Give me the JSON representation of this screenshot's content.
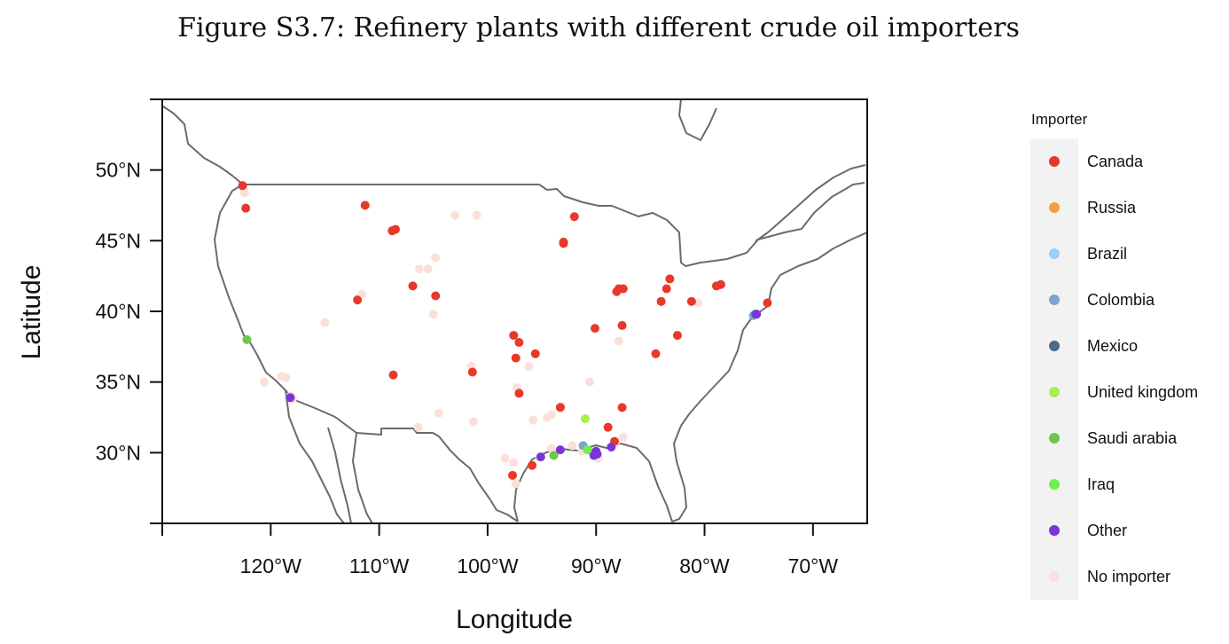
{
  "figure": {
    "title": "Figure S3.7: Refinery plants with different crude oil importers"
  },
  "legend": {
    "title": "Importer",
    "items": [
      {
        "label": "Canada",
        "color": "#e8382a"
      },
      {
        "label": "Russia",
        "color": "#f2a03c"
      },
      {
        "label": "Brazil",
        "color": "#9ecdf5"
      },
      {
        "label": "Colombia",
        "color": "#7ea4cf"
      },
      {
        "label": "Mexico",
        "color": "#4d6a86"
      },
      {
        "label": "United kingdom",
        "color": "#a6f050"
      },
      {
        "label": "Saudi arabia",
        "color": "#6cc74a"
      },
      {
        "label": "Iraq",
        "color": "#6ef04a"
      },
      {
        "label": "Other",
        "color": "#7b34d9"
      },
      {
        "label": "No importer",
        "color": "#fbe0da"
      }
    ]
  },
  "chart_data": {
    "type": "scatter",
    "title": "Figure S3.7: Refinery plants with different crude oil importers",
    "xlabel": "Longitude",
    "ylabel": "Latitude",
    "xlim": [
      -130,
      -65
    ],
    "ylim": [
      25,
      55
    ],
    "x_ticks": [
      {
        "value": -120,
        "label": "120°W"
      },
      {
        "value": -110,
        "label": "110°W"
      },
      {
        "value": -100,
        "label": "100°W"
      },
      {
        "value": -90,
        "label": "90°W"
      },
      {
        "value": -80,
        "label": "80°W"
      },
      {
        "value": -70,
        "label": "70°W"
      }
    ],
    "y_ticks": [
      {
        "value": 30,
        "label": "30°N"
      },
      {
        "value": 35,
        "label": "35°N"
      },
      {
        "value": 40,
        "label": "40°N"
      },
      {
        "value": 45,
        "label": "45°N"
      },
      {
        "value": 50,
        "label": "50°N"
      }
    ],
    "grid": false,
    "legend_position": "right",
    "series": [
      {
        "name": "No importer",
        "color": "#fbe0da",
        "points": [
          [
            -122.5,
            48.7
          ],
          [
            -122.4,
            48.4
          ],
          [
            -119,
            35.4
          ],
          [
            -118.6,
            35.3
          ],
          [
            -118.2,
            34.0
          ],
          [
            -118.0,
            33.8
          ],
          [
            -120.6,
            35.0
          ],
          [
            -115.0,
            39.2
          ],
          [
            -111.6,
            41.2
          ],
          [
            -112.0,
            40.9
          ],
          [
            -106.3,
            43.0
          ],
          [
            -105.5,
            43.0
          ],
          [
            -104.8,
            43.8
          ],
          [
            -105.0,
            39.8
          ],
          [
            -103.0,
            46.8
          ],
          [
            -101.0,
            46.8
          ],
          [
            -101.5,
            36.1
          ],
          [
            -101.3,
            32.2
          ],
          [
            -104.5,
            32.8
          ],
          [
            -106.4,
            31.8
          ],
          [
            -97.3,
            34.6
          ],
          [
            -96.2,
            36.1
          ],
          [
            -95.8,
            32.3
          ],
          [
            -94.5,
            32.5
          ],
          [
            -94.1,
            32.7
          ],
          [
            -93.2,
            33.3
          ],
          [
            -90.6,
            35.0
          ],
          [
            -87.9,
            37.9
          ],
          [
            -80.6,
            40.6
          ],
          [
            -87.5,
            31.1
          ],
          [
            -98.4,
            29.6
          ],
          [
            -97.6,
            29.3
          ],
          [
            -97.4,
            27.8
          ],
          [
            -95.2,
            29.7
          ],
          [
            -94.1,
            30.3
          ],
          [
            -93.6,
            30.1
          ],
          [
            -92.2,
            30.5
          ],
          [
            -91.3,
            30.1
          ],
          [
            -90.9,
            30.2
          ],
          [
            -89.8,
            29.6
          ],
          [
            -88.2,
            30.7
          ]
        ]
      },
      {
        "name": "Canada",
        "color": "#e8382a",
        "points": [
          [
            -122.6,
            48.9
          ],
          [
            -122.3,
            47.3
          ],
          [
            -111.3,
            47.5
          ],
          [
            -108.8,
            45.7
          ],
          [
            -108.5,
            45.8
          ],
          [
            -104.8,
            41.1
          ],
          [
            -106.9,
            41.8
          ],
          [
            -112.0,
            40.8
          ],
          [
            -108.7,
            35.5
          ],
          [
            -101.4,
            35.7
          ],
          [
            -97.4,
            36.7
          ],
          [
            -97.6,
            38.3
          ],
          [
            -97.1,
            37.8
          ],
          [
            -95.6,
            37.0
          ],
          [
            -97.1,
            34.2
          ],
          [
            -93.0,
            44.9
          ],
          [
            -93.0,
            44.8
          ],
          [
            -92.0,
            46.7
          ],
          [
            -88.1,
            41.4
          ],
          [
            -87.9,
            41.6
          ],
          [
            -87.5,
            41.6
          ],
          [
            -83.5,
            41.6
          ],
          [
            -83.2,
            42.3
          ],
          [
            -84.0,
            40.7
          ],
          [
            -81.2,
            40.7
          ],
          [
            -78.9,
            41.8
          ],
          [
            -78.5,
            41.9
          ],
          [
            -87.6,
            39.0
          ],
          [
            -90.1,
            38.8
          ],
          [
            -82.5,
            38.3
          ],
          [
            -84.5,
            37.0
          ],
          [
            -87.6,
            33.2
          ],
          [
            -88.9,
            31.8
          ],
          [
            -88.3,
            30.8
          ],
          [
            -93.3,
            33.2
          ],
          [
            -95.9,
            29.1
          ],
          [
            -97.7,
            28.4
          ],
          [
            -74.2,
            40.6
          ]
        ]
      },
      {
        "name": "Colombia",
        "color": "#7ea4cf",
        "points": [
          [
            -91.2,
            30.5
          ],
          [
            -75.5,
            39.7
          ]
        ]
      },
      {
        "name": "Mexico",
        "color": "#4d6a86",
        "points": [
          [
            -75.3,
            39.8
          ]
        ]
      },
      {
        "name": "United kingdom",
        "color": "#a6f050",
        "points": [
          [
            -91.0,
            32.4
          ]
        ]
      },
      {
        "name": "Saudi arabia",
        "color": "#6cc74a",
        "points": [
          [
            -93.9,
            29.8
          ],
          [
            -122.2,
            38.0
          ]
        ]
      },
      {
        "name": "Iraq",
        "color": "#6ef04a",
        "points": [
          [
            -90.8,
            30.2
          ],
          [
            -90.3,
            30.0
          ]
        ]
      },
      {
        "name": "Other",
        "color": "#7b34d9",
        "points": [
          [
            -93.3,
            30.2
          ],
          [
            -90.0,
            30.1
          ],
          [
            -89.9,
            29.9
          ],
          [
            -90.2,
            29.8
          ],
          [
            -88.6,
            30.4
          ],
          [
            -95.1,
            29.7
          ],
          [
            -118.2,
            33.9
          ],
          [
            -75.2,
            39.8
          ]
        ]
      }
    ]
  }
}
